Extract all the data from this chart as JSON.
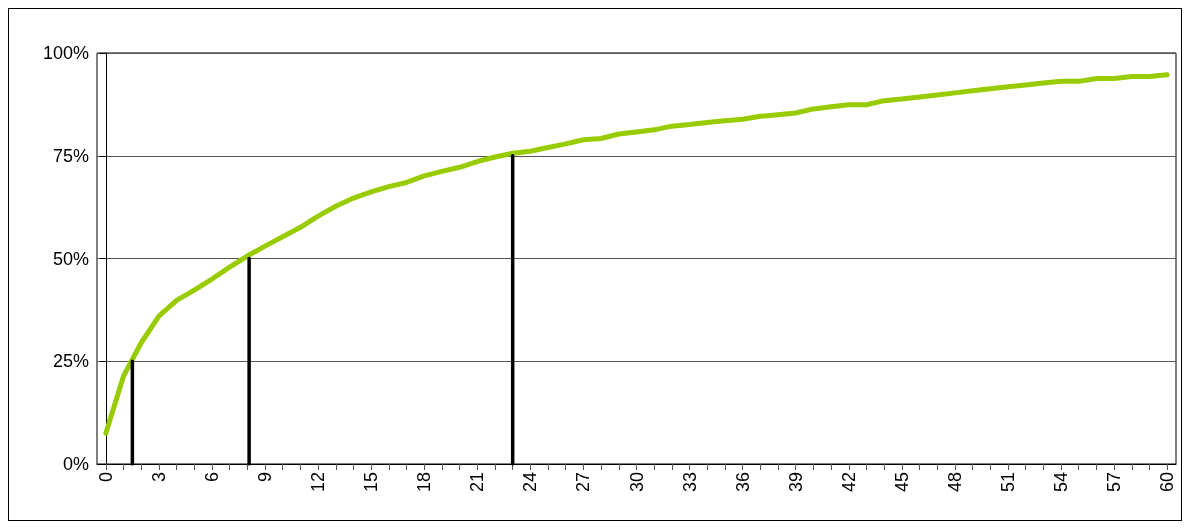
{
  "chart_data": {
    "type": "line",
    "xlim": [
      -0.5,
      60.5
    ],
    "xticks": [
      0,
      {
        "value": 1,
        "label": null
      },
      {
        "value": 2,
        "label": null
      },
      3,
      {
        "value": 4,
        "label": null
      },
      {
        "value": 5,
        "label": null
      },
      6,
      {
        "value": 7,
        "label": null
      },
      {
        "value": 8,
        "label": null
      },
      9,
      {
        "value": 10,
        "label": null
      },
      {
        "value": 11,
        "label": null
      },
      12,
      {
        "value": 13,
        "label": null
      },
      {
        "value": 14,
        "label": null
      },
      15,
      {
        "value": 16,
        "label": null
      },
      {
        "value": 17,
        "label": null
      },
      18,
      {
        "value": 19,
        "label": null
      },
      {
        "value": 20,
        "label": null
      },
      21,
      {
        "value": 22,
        "label": null
      },
      {
        "value": 23,
        "label": null
      },
      24,
      {
        "value": 25,
        "label": null
      },
      {
        "value": 26,
        "label": null
      },
      27,
      {
        "value": 28,
        "label": null
      },
      {
        "value": 29,
        "label": null
      },
      30,
      {
        "value": 31,
        "label": null
      },
      {
        "value": 32,
        "label": null
      },
      33,
      {
        "value": 34,
        "label": null
      },
      {
        "value": 35,
        "label": null
      },
      36,
      {
        "value": 37,
        "label": null
      },
      {
        "value": 38,
        "label": null
      },
      39,
      {
        "value": 40,
        "label": null
      },
      {
        "value": 41,
        "label": null
      },
      42,
      {
        "value": 43,
        "label": null
      },
      {
        "value": 44,
        "label": null
      },
      45,
      {
        "value": 46,
        "label": null
      },
      {
        "value": 47,
        "label": null
      },
      48,
      {
        "value": 49,
        "label": null
      },
      {
        "value": 50,
        "label": null
      },
      51,
      {
        "value": 52,
        "label": null
      },
      {
        "value": 53,
        "label": null
      },
      54,
      {
        "value": 55,
        "label": null
      },
      {
        "value": 56,
        "label": null
      },
      57,
      {
        "value": 58,
        "label": null
      },
      {
        "value": 59,
        "label": null
      },
      60
    ],
    "ylim": [
      0,
      100
    ],
    "yticks": [
      {
        "value": 0,
        "label": "0%"
      },
      {
        "value": 25,
        "label": "25%"
      },
      {
        "value": 50,
        "label": "50%"
      },
      {
        "value": 75,
        "label": "75%"
      },
      {
        "value": 100,
        "label": "100%"
      }
    ],
    "grid": "y",
    "marker": "none",
    "line_style": "solid",
    "series": [
      {
        "color": "#99cc00",
        "x": [
          0,
          1,
          2,
          3,
          4,
          5,
          6,
          7,
          8,
          9,
          10,
          11,
          12,
          13,
          14,
          15,
          16,
          17,
          18,
          19,
          20,
          21,
          22,
          23,
          24,
          25,
          26,
          27,
          28,
          29,
          30,
          31,
          32,
          33,
          34,
          35,
          36,
          37,
          38,
          39,
          40,
          41,
          42,
          43,
          44,
          45,
          46,
          47,
          48,
          49,
          50,
          51,
          52,
          53,
          54,
          55,
          56,
          57,
          58,
          59,
          60
        ],
        "values": [
          7.5,
          21.4,
          29.5,
          36,
          39.8,
          42.3,
          45,
          47.9,
          50.6,
          53,
          55.3,
          57.6,
          60.3,
          62.7,
          64.7,
          66.2,
          67.5,
          68.5,
          70.1,
          71.2,
          72.2,
          73.6,
          74.7,
          75.6,
          76.1,
          77,
          77.9,
          78.9,
          79.2,
          80.3,
          80.8,
          81.3,
          82.2,
          82.6,
          83.1,
          83.5,
          83.9,
          84.6,
          85,
          85.4,
          86.4,
          86.9,
          87.4,
          87.4,
          88.4,
          88.8,
          89.3,
          89.8,
          90.3,
          90.8,
          91.3,
          91.8,
          92.2,
          92.7,
          93.1,
          93.1,
          93.8,
          93.8,
          94.3,
          94.3,
          94.7
        ]
      },
      {
        "color": "#000000",
        "x": [
          1.5,
          1.5
        ],
        "values": [
          0,
          25
        ]
      },
      {
        "color": "#000000",
        "x": [
          8.1,
          8.1
        ],
        "values": [
          0,
          50
        ]
      },
      {
        "color": "#000000",
        "x": [
          23,
          23
        ],
        "values": [
          0,
          75
        ]
      }
    ]
  }
}
